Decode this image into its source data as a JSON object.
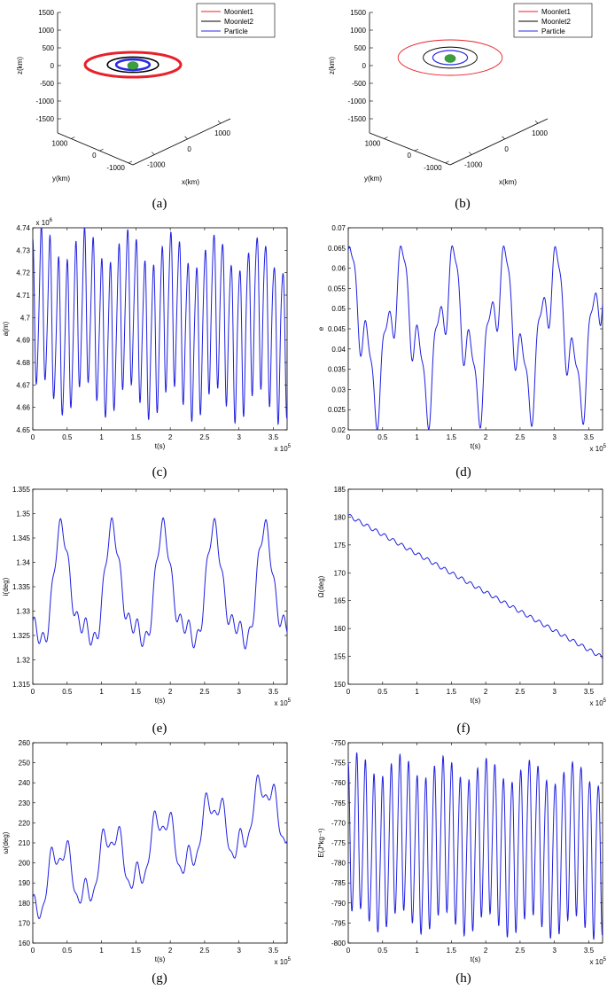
{
  "figure": {
    "panels": [
      {
        "id": "a",
        "caption": "(a)",
        "type": "orbit3d",
        "z_axis_label": "z(km)",
        "y_axis_label": "y(km)",
        "x_axis_label": "x(km)",
        "z_ticks": [
          "1500",
          "1000",
          "500",
          "0",
          "-500",
          "-1000",
          "-1500"
        ],
        "y_ticks": [
          "1000",
          "0",
          "-1000"
        ],
        "x_ticks": [
          "-1000",
          "0",
          "1000"
        ],
        "legend": [
          "Moonlet1",
          "Moonlet2",
          "Particle"
        ],
        "colors": {
          "moonlet1": "#e8202a",
          "moonlet2": "#000000",
          "particle": "#2a2ae6",
          "body": "#3aa13a"
        },
        "orbits": {
          "moonlet1_radius_km": 1200,
          "moonlet2_radius_km": 640,
          "particle_radius_km": 420
        }
      },
      {
        "id": "b",
        "caption": "(b)",
        "type": "orbit3d",
        "z_axis_label": "z(km)",
        "y_axis_label": "y(km)",
        "x_axis_label": "x(km)",
        "z_ticks": [
          "1500",
          "1000",
          "500",
          "0",
          "-500",
          "-1000",
          "-1500"
        ],
        "y_ticks": [
          "1000",
          "0",
          "-1000"
        ],
        "x_ticks": [
          "-1000",
          "0",
          "1000"
        ],
        "legend": [
          "Moonlet1",
          "Moonlet2",
          "Particle"
        ],
        "colors": {
          "moonlet1": "#e8202a",
          "moonlet2": "#000000",
          "particle": "#2a2ae6",
          "body": "#3aa13a"
        },
        "orbits": {
          "moonlet1_radius_km": 1200,
          "moonlet2_radius_km": 620,
          "particle_radius_km": 400
        }
      }
    ]
  },
  "chart_data": [
    {
      "id": "c",
      "caption": "(c)",
      "type": "line",
      "ylabel": "a(m)",
      "xlabel": "t(s)",
      "x_range": [
        0,
        3.7
      ],
      "x_exponent": "x 10^5",
      "ylim": [
        4.65,
        4.74
      ],
      "y_exponent": "x 10^6",
      "yticks": [
        "4.65",
        "4.66",
        "4.67",
        "4.68",
        "4.69",
        "4.7",
        "4.71",
        "4.72",
        "4.73",
        "4.74"
      ],
      "xticks": [
        "0",
        "0.5",
        "1",
        "1.5",
        "2",
        "2.5",
        "3",
        "3.5"
      ],
      "color": "#1f1fe0",
      "series": {
        "trend": "flat",
        "mean": 4.6975,
        "osc": [
          {
            "amp": 0.033,
            "period": 0.1255,
            "phase": 1.8
          },
          {
            "amp": 0.008,
            "period": 0.63,
            "phase": 0.2
          },
          {
            "amp": 0.005,
            "period": 0.063,
            "phase": 0.9
          }
        ],
        "points": 1100
      }
    },
    {
      "id": "d",
      "caption": "(d)",
      "type": "line",
      "ylabel": "e",
      "xlabel": "t(s)",
      "x_range": [
        0,
        3.7
      ],
      "x_exponent": "x 10^5",
      "ylim": [
        0.02,
        0.07
      ],
      "yticks": [
        "0.02",
        "0.025",
        "0.03",
        "0.035",
        "0.04",
        "0.045",
        "0.05",
        "0.055",
        "0.06",
        "0.065",
        "0.07"
      ],
      "xticks": [
        "0",
        "0.5",
        "1",
        "1.5",
        "2",
        "2.5",
        "3",
        "3.5"
      ],
      "color": "#1f1fe0",
      "series": {
        "trend": "flat",
        "mean": 0.0445,
        "osc": [
          {
            "amp": 0.014,
            "period": 0.74,
            "phase": 1.3
          },
          {
            "amp": 0.008,
            "period": 0.25,
            "phase": 0.5
          },
          {
            "amp": 0.003,
            "period": 0.125,
            "phase": 2.1
          }
        ],
        "points": 900
      }
    },
    {
      "id": "e",
      "caption": "(e)",
      "type": "line",
      "ylabel": "i(deg)",
      "xlabel": "t(s)",
      "x_range": [
        0,
        3.7
      ],
      "x_exponent": "x 10^5",
      "ylim": [
        1.315,
        1.355
      ],
      "yticks": [
        "1.315",
        "1.32",
        "1.325",
        "1.33",
        "1.335",
        "1.34",
        "1.345",
        "1.35",
        "1.355"
      ],
      "xticks": [
        "0",
        "0.5",
        "1",
        "1.5",
        "2",
        "2.5",
        "3",
        "3.5"
      ],
      "color": "#1f1fe0",
      "series": {
        "trend": "flat",
        "mean": 1.333,
        "osc": [
          {
            "amp": 0.0105,
            "period": 0.74,
            "phase": 4.2
          },
          {
            "amp": 0.004,
            "period": 0.37,
            "phase": 1.0
          },
          {
            "amp": 0.0018,
            "period": 0.125,
            "phase": 0.4
          }
        ],
        "points": 900
      }
    },
    {
      "id": "f",
      "caption": "(f)",
      "type": "line",
      "ylabel": "Ω(deg)",
      "xlabel": "t(s)",
      "x_range": [
        0,
        3.7
      ],
      "x_exponent": "x 10^5",
      "ylim": [
        150,
        185
      ],
      "yticks": [
        "150",
        "155",
        "160",
        "165",
        "170",
        "175",
        "180",
        "185"
      ],
      "xticks": [
        "0",
        "0.5",
        "1",
        "1.5",
        "2",
        "2.5",
        "3",
        "3.5"
      ],
      "color": "#1f1fe0",
      "series": {
        "trend": "linear",
        "start": 180.3,
        "end": 154.8,
        "osc": [
          {
            "amp": 0.35,
            "period": 0.125,
            "phase": 0.0
          }
        ],
        "points": 600
      }
    },
    {
      "id": "g",
      "caption": "(g)",
      "type": "line",
      "ylabel": "ω(deg)",
      "xlabel": "t(s)",
      "x_range": [
        0,
        3.7
      ],
      "x_exponent": "x 10^5",
      "ylim": [
        160,
        260
      ],
      "yticks": [
        "160",
        "170",
        "180",
        "190",
        "200",
        "210",
        "220",
        "230",
        "240",
        "250",
        "260"
      ],
      "xticks": [
        "0",
        "0.5",
        "1",
        "1.5",
        "2",
        "2.5",
        "3",
        "3.5"
      ],
      "color": "#1f1fe0",
      "series": {
        "trend": "linear",
        "start": 188,
        "end": 228,
        "osc": [
          {
            "amp": 14,
            "period": 0.74,
            "phase": 4.5
          },
          {
            "amp": 7,
            "period": 0.25,
            "phase": 1.2
          },
          {
            "amp": 3,
            "period": 0.125,
            "phase": 0.7
          }
        ],
        "points": 900
      }
    },
    {
      "id": "h",
      "caption": "(h)",
      "type": "line",
      "ylabel": "E(J*kg⁻¹)",
      "xlabel": "t(s)",
      "x_range": [
        0,
        3.7
      ],
      "x_exponent": "x 10^5",
      "ylim": [
        -800,
        -750
      ],
      "yticks": [
        "-800",
        "-795",
        "-790",
        "-785",
        "-780",
        "-775",
        "-770",
        "-765",
        "-760",
        "-755",
        "-750"
      ],
      "xticks": [
        "0",
        "0.5",
        "1",
        "1.5",
        "2",
        "2.5",
        "3",
        "3.5"
      ],
      "color": "#1f1fe0",
      "series": {
        "trend": "flat",
        "mean": -775.5,
        "osc": [
          {
            "amp": 19,
            "period": 0.1255,
            "phase": 1.8
          },
          {
            "amp": 3,
            "period": 0.63,
            "phase": 0.2
          },
          {
            "amp": 2,
            "period": 0.063,
            "phase": 0.9
          }
        ],
        "points": 1100
      }
    }
  ]
}
